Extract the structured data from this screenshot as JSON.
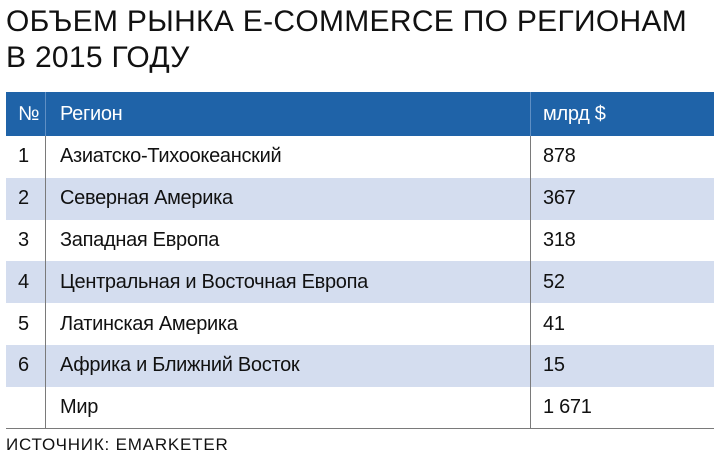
{
  "chart_data": {
    "type": "table",
    "title": "ОБЪЕМ РЫНКА E-COMMERCE ПО РЕГИОНАМ В 2015 ГОДУ",
    "columns": [
      "№",
      "Регион",
      "млрд $"
    ],
    "rows": [
      {
        "num": "1",
        "region": "Азиатско-Тихоокеанский",
        "value": "878"
      },
      {
        "num": "2",
        "region": "Северная Америка",
        "value": "367"
      },
      {
        "num": "3",
        "region": "Западная Европа",
        "value": "318"
      },
      {
        "num": "4",
        "region": "Центральная и Восточная Европа",
        "value": "52"
      },
      {
        "num": "5",
        "region": "Латинская Америка",
        "value": "41"
      },
      {
        "num": "6",
        "region": "Африка и Ближний Восток",
        "value": "15"
      },
      {
        "num": "",
        "region": "Мир",
        "value": "1 671"
      }
    ],
    "source": "ИСТОЧНИК: EMARKETER"
  },
  "colors": {
    "header_bg": "#1f63a8",
    "header_text": "#ffffff",
    "shade_bg": "#d4ddef"
  }
}
